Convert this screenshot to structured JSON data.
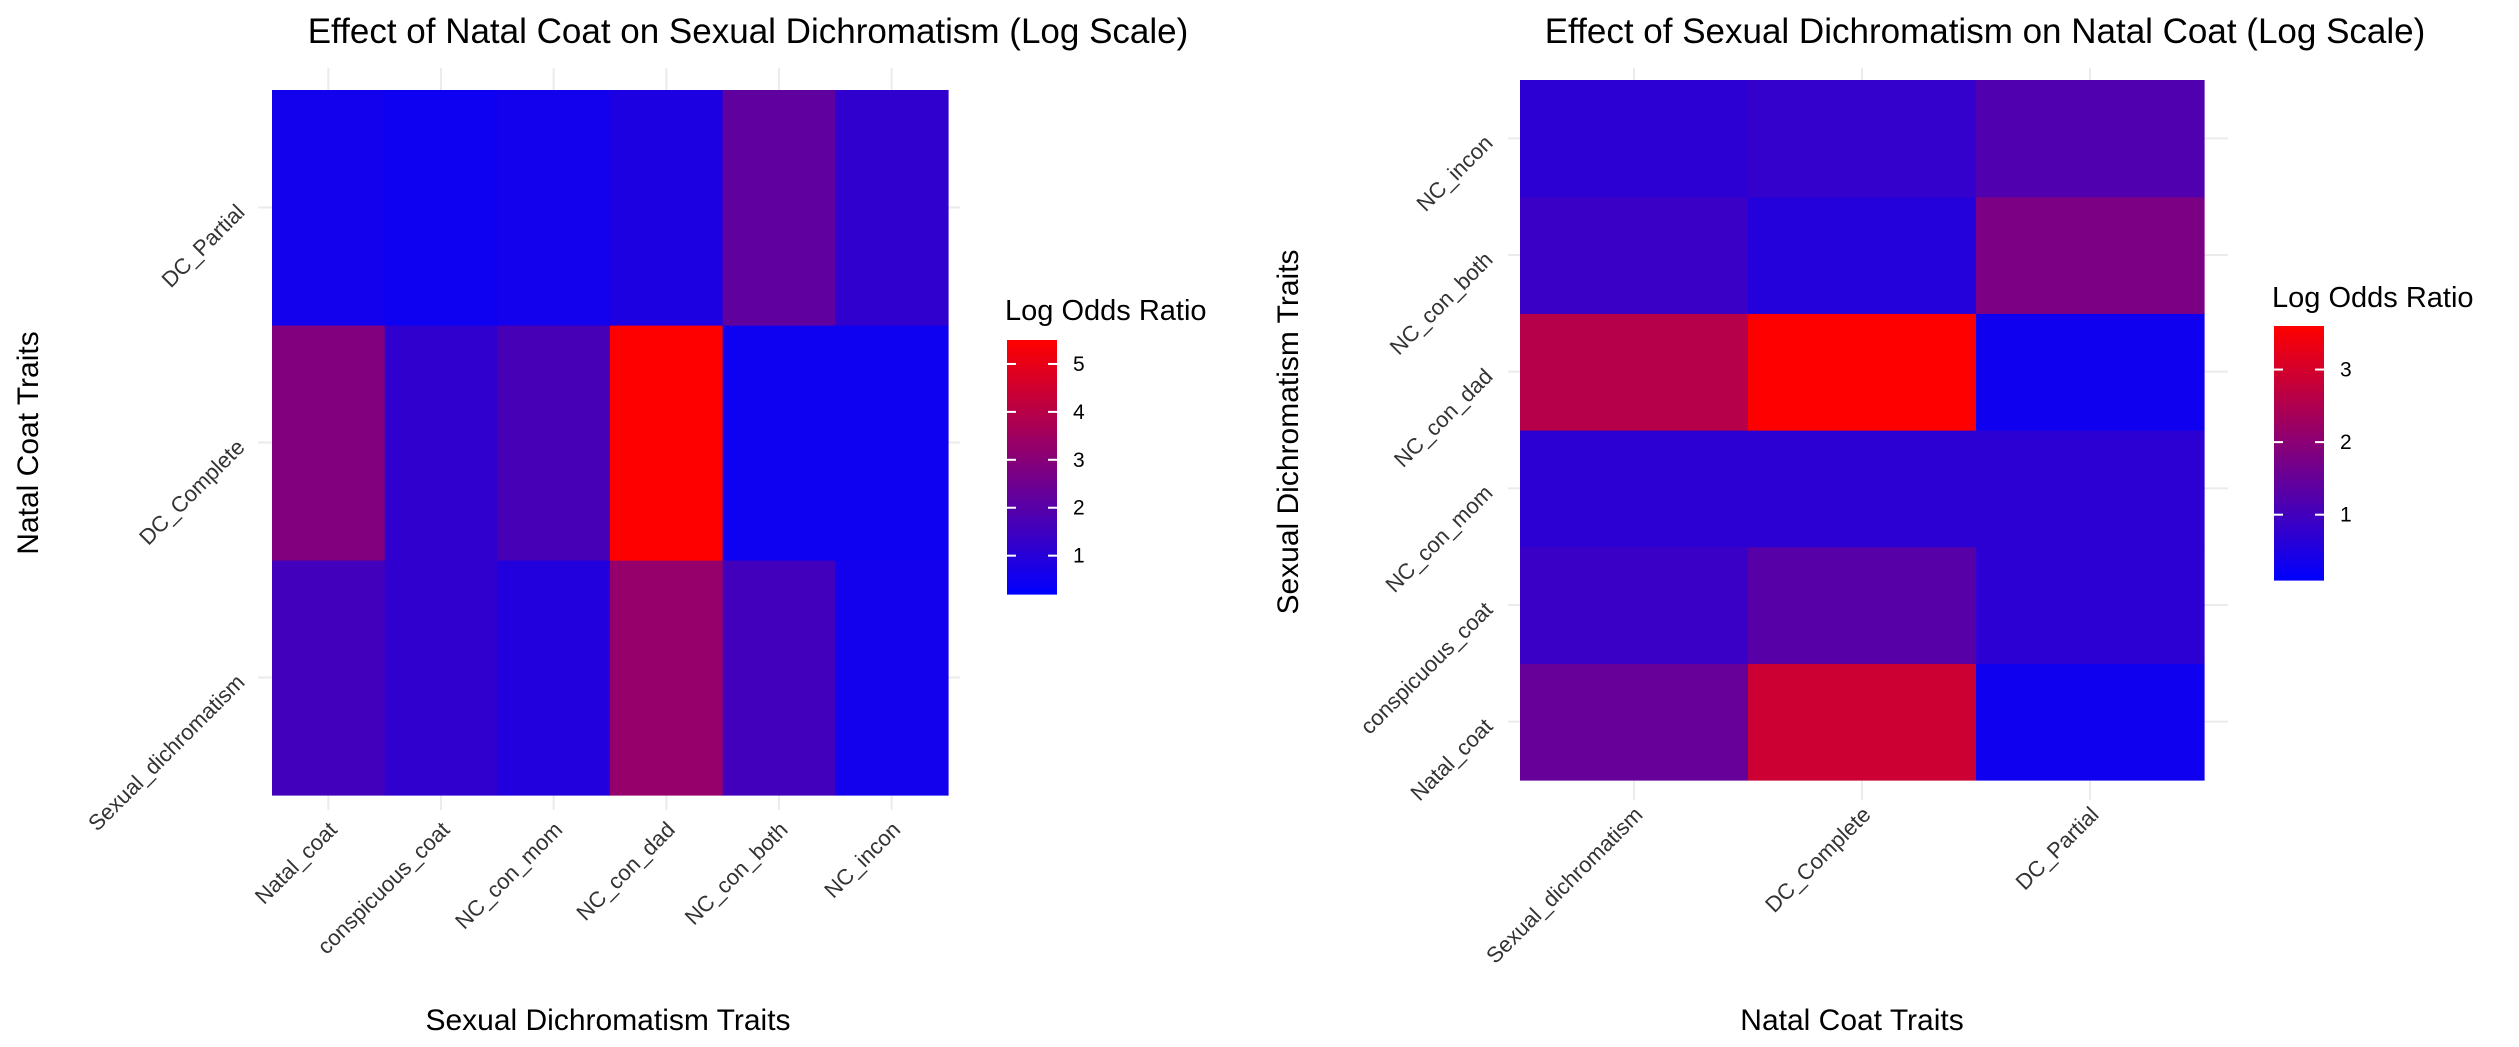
{
  "chart_data": [
    {
      "type": "heatmap",
      "title": "Effect of Natal Coat on Sexual Dichromatism (Log Scale)",
      "xlabel": "Sexual Dichromatism Traits",
      "ylabel": "Natal Coat Traits",
      "x": [
        "Natal_coat",
        "conspicuous_coat",
        "NC_con_mom",
        "NC_con_dad",
        "NC_con_both",
        "NC_incon"
      ],
      "y": [
        "Sexual_dichromatism",
        "DC_Complete",
        "DC_Partial"
      ],
      "values": [
        [
          1.6,
          1.2,
          0.9,
          3.3,
          1.6,
          0.6
        ],
        [
          2.9,
          1.2,
          1.7,
          5.5,
          0.5,
          0.5
        ],
        [
          0.6,
          0.5,
          0.6,
          0.8,
          2.2,
          1.2
        ]
      ],
      "legend": {
        "title": "Log Odds Ratio",
        "ticks": [
          1,
          2,
          3,
          4,
          5
        ],
        "range": [
          0.2,
          5.5
        ],
        "colors": [
          "#0000FF",
          "#FF0000"
        ]
      }
    },
    {
      "type": "heatmap",
      "title": "Effect of Sexual Dichromatism on Natal Coat (Log Scale)",
      "xlabel": "Natal Coat Traits",
      "ylabel": "Sexual Dichromatism Traits",
      "x": [
        "Sexual_dichromatism",
        "DC_Complete",
        "DC_Partial"
      ],
      "y": [
        "Natal_coat",
        "conspicuous_coat",
        "NC_con_mom",
        "NC_con_dad",
        "NC_con_both",
        "NC_incon"
      ],
      "values": [
        [
          1.5,
          2.9,
          0.3
        ],
        [
          0.9,
          1.3,
          0.7
        ],
        [
          0.7,
          0.7,
          0.7
        ],
        [
          2.6,
          3.6,
          0.3
        ],
        [
          0.9,
          0.6,
          1.8
        ],
        [
          0.7,
          0.8,
          1.2
        ]
      ],
      "legend": {
        "title": "Log Odds Ratio",
        "ticks": [
          1,
          2,
          3
        ],
        "range": [
          0.1,
          3.6
        ],
        "colors": [
          "#0000FF",
          "#FF0000"
        ]
      }
    }
  ]
}
